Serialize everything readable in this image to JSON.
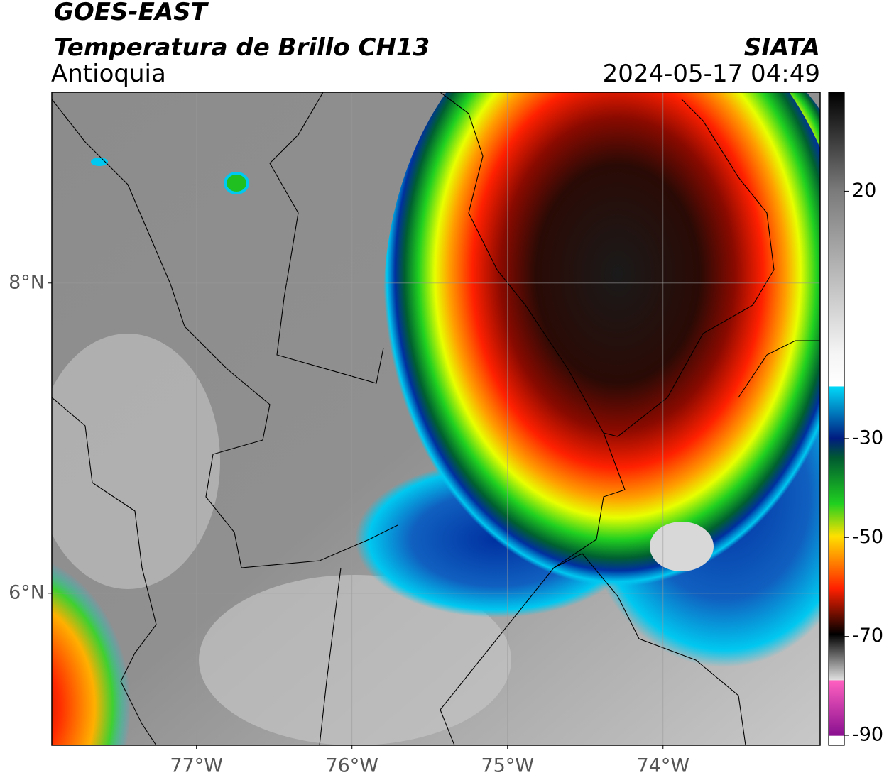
{
  "header": {
    "title": "GOES-EAST",
    "product": "Temperatura de Brillo CH13",
    "region": "Antioquia",
    "source": "SIATA",
    "datetime": "2024-05-17 04:49"
  },
  "map": {
    "xlim": [
      -77.93,
      -72.99
    ],
    "ylim": [
      5.02,
      9.23
    ],
    "xticks": [
      {
        "value": -77,
        "label": "77°W"
      },
      {
        "value": -76,
        "label": "76°W"
      },
      {
        "value": -75,
        "label": "75°W"
      },
      {
        "value": -74,
        "label": "74°W"
      }
    ],
    "yticks": [
      {
        "value": 6,
        "label": "6°N"
      },
      {
        "value": 8,
        "label": "8°N"
      }
    ],
    "grid": true
  },
  "colorbar": {
    "lim": [
      -92,
      40
    ],
    "ticks": [
      20,
      -30,
      -50,
      -70,
      -90
    ]
  }
}
